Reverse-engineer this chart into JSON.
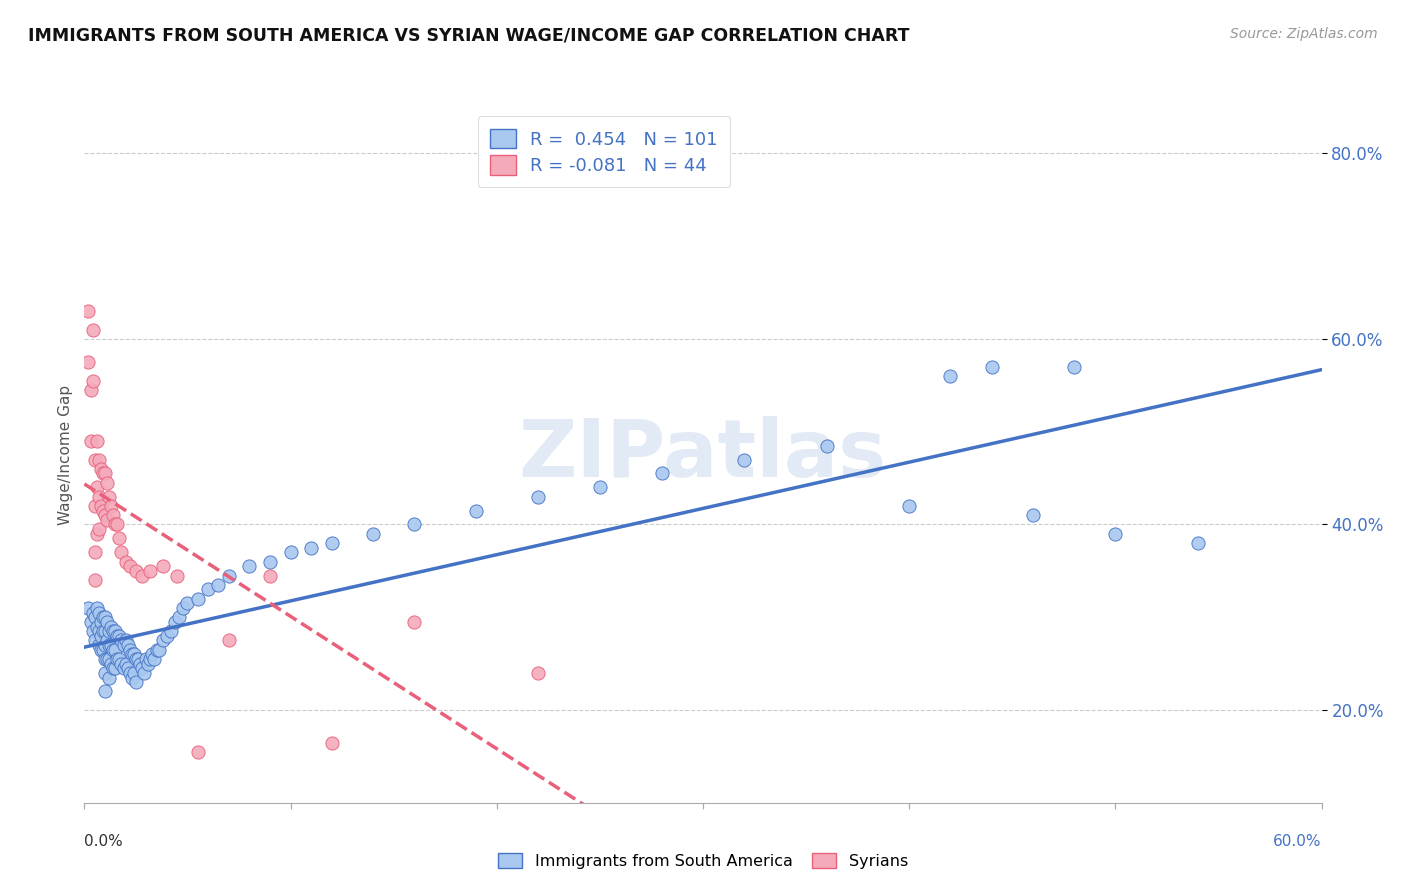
{
  "title": "IMMIGRANTS FROM SOUTH AMERICA VS SYRIAN WAGE/INCOME GAP CORRELATION CHART",
  "source": "Source: ZipAtlas.com",
  "ylabel": "Wage/Income Gap",
  "xlim": [
    0.0,
    0.6
  ],
  "ylim": [
    0.1,
    0.85
  ],
  "yticks": [
    0.2,
    0.4,
    0.6,
    0.8
  ],
  "ytick_labels": [
    "20.0%",
    "40.0%",
    "60.0%",
    "80.0%"
  ],
  "legend_label1": "Immigrants from South America",
  "legend_label2": "Syrians",
  "r1": 0.454,
  "n1": 101,
  "r2": -0.081,
  "n2": 44,
  "watermark": "ZIPatlas",
  "color_blue": "#A8C8F0",
  "color_pink": "#F4AABB",
  "line_blue": "#4472C4",
  "line_pink": "#E8607A",
  "blue_scatter_x": [
    0.002,
    0.003,
    0.004,
    0.004,
    0.005,
    0.005,
    0.006,
    0.006,
    0.007,
    0.007,
    0.007,
    0.008,
    0.008,
    0.008,
    0.009,
    0.009,
    0.009,
    0.01,
    0.01,
    0.01,
    0.01,
    0.01,
    0.01,
    0.011,
    0.011,
    0.011,
    0.012,
    0.012,
    0.012,
    0.012,
    0.013,
    0.013,
    0.013,
    0.014,
    0.014,
    0.014,
    0.015,
    0.015,
    0.015,
    0.016,
    0.016,
    0.017,
    0.017,
    0.018,
    0.018,
    0.019,
    0.019,
    0.02,
    0.02,
    0.021,
    0.021,
    0.022,
    0.022,
    0.023,
    0.023,
    0.024,
    0.024,
    0.025,
    0.025,
    0.026,
    0.027,
    0.028,
    0.029,
    0.03,
    0.031,
    0.032,
    0.033,
    0.034,
    0.035,
    0.036,
    0.038,
    0.04,
    0.042,
    0.044,
    0.046,
    0.048,
    0.05,
    0.055,
    0.06,
    0.065,
    0.07,
    0.08,
    0.09,
    0.1,
    0.11,
    0.12,
    0.14,
    0.16,
    0.19,
    0.22,
    0.25,
    0.28,
    0.32,
    0.36,
    0.4,
    0.42,
    0.44,
    0.46,
    0.48,
    0.5,
    0.54
  ],
  "blue_scatter_y": [
    0.31,
    0.295,
    0.305,
    0.285,
    0.3,
    0.275,
    0.31,
    0.29,
    0.305,
    0.285,
    0.27,
    0.295,
    0.28,
    0.265,
    0.3,
    0.285,
    0.265,
    0.3,
    0.285,
    0.27,
    0.255,
    0.24,
    0.22,
    0.295,
    0.275,
    0.255,
    0.285,
    0.27,
    0.255,
    0.235,
    0.29,
    0.27,
    0.25,
    0.285,
    0.265,
    0.245,
    0.285,
    0.265,
    0.245,
    0.28,
    0.255,
    0.28,
    0.255,
    0.275,
    0.25,
    0.27,
    0.245,
    0.275,
    0.25,
    0.27,
    0.245,
    0.265,
    0.24,
    0.26,
    0.235,
    0.26,
    0.24,
    0.255,
    0.23,
    0.255,
    0.25,
    0.245,
    0.24,
    0.255,
    0.25,
    0.255,
    0.26,
    0.255,
    0.265,
    0.265,
    0.275,
    0.28,
    0.285,
    0.295,
    0.3,
    0.31,
    0.315,
    0.32,
    0.33,
    0.335,
    0.345,
    0.355,
    0.36,
    0.37,
    0.375,
    0.38,
    0.39,
    0.4,
    0.415,
    0.43,
    0.44,
    0.455,
    0.47,
    0.485,
    0.42,
    0.56,
    0.57,
    0.41,
    0.57,
    0.39,
    0.38
  ],
  "pink_scatter_x": [
    0.002,
    0.002,
    0.003,
    0.003,
    0.004,
    0.004,
    0.005,
    0.005,
    0.005,
    0.005,
    0.006,
    0.006,
    0.006,
    0.007,
    0.007,
    0.007,
    0.008,
    0.008,
    0.009,
    0.009,
    0.01,
    0.01,
    0.011,
    0.011,
    0.012,
    0.013,
    0.014,
    0.015,
    0.016,
    0.017,
    0.018,
    0.02,
    0.022,
    0.025,
    0.028,
    0.032,
    0.038,
    0.045,
    0.055,
    0.07,
    0.09,
    0.12,
    0.16,
    0.22
  ],
  "pink_scatter_y": [
    0.63,
    0.575,
    0.545,
    0.49,
    0.61,
    0.555,
    0.47,
    0.42,
    0.37,
    0.34,
    0.49,
    0.44,
    0.39,
    0.47,
    0.43,
    0.395,
    0.46,
    0.42,
    0.455,
    0.415,
    0.455,
    0.41,
    0.445,
    0.405,
    0.43,
    0.42,
    0.41,
    0.4,
    0.4,
    0.385,
    0.37,
    0.36,
    0.355,
    0.35,
    0.345,
    0.35,
    0.355,
    0.345,
    0.155,
    0.275,
    0.345,
    0.165,
    0.295,
    0.24
  ]
}
